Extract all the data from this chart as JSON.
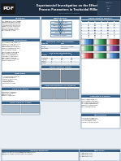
{
  "title_line1": "Experimental Investigation on the Effect of",
  "title_line2": "Process Parameters in Trochoidal Milling",
  "header_bg": "#1e2d40",
  "header_text_color": "#ffffff",
  "body_bg": "#e8eef4",
  "section_bg": "#ffffff",
  "section_title_bg": "#3a6186",
  "section_title_color": "#ffffff",
  "pdf_badge_bg": "#1a1a1a",
  "pdf_badge_color": "#ffffff",
  "table_header_bg": "#3a6186",
  "table_alt_bg": "#dde6ef",
  "col1_sections": [
    "Summary",
    "Introduction",
    "Objectives",
    "Scope of Study"
  ],
  "col2_sections": [
    "Methodology",
    "Machine Tool Description",
    "Process Parameters",
    "Experimental Setup",
    "Characterization of Samples"
  ],
  "col3_sections": [
    "Experimental Results",
    "Statistical Results"
  ],
  "footer_sections": [
    "Acknowledgements",
    "References"
  ],
  "contour_colors_row0": [
    "#4488cc",
    "#44aa66",
    "#cc4444",
    "#884499",
    "#cc8833",
    "#33aaaa"
  ],
  "contour_colors_row1": [
    "#44aa66",
    "#4488cc",
    "#884499",
    "#cc4444",
    "#33aaaa",
    "#cc8833"
  ],
  "contour_colors_row2": [
    "#cc4444",
    "#44aa66",
    "#4488cc",
    "#cc8833",
    "#884499",
    "#33aaaa"
  ]
}
